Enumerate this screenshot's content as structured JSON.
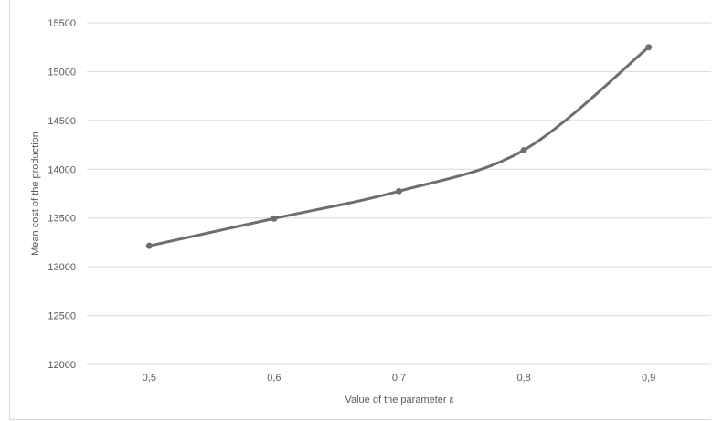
{
  "chart_data": {
    "type": "line",
    "categories": [
      "0,5",
      "0,6",
      "0,7",
      "0,8",
      "0,9"
    ],
    "series": [
      {
        "values": [
          13215,
          13495,
          13775,
          14195,
          15250
        ]
      }
    ],
    "xlabel": "Value of the parameter ε",
    "ylabel": "Mean cost of the production",
    "ylim": [
      12000,
      15500
    ],
    "yticks": [
      "12000",
      "12500",
      "13000",
      "13500",
      "14000",
      "14500",
      "15000",
      "15500"
    ],
    "grid": "horizontal",
    "smoothed": true,
    "line_color": "#6e6e6e",
    "grid_color": "#d9d9d9"
  }
}
